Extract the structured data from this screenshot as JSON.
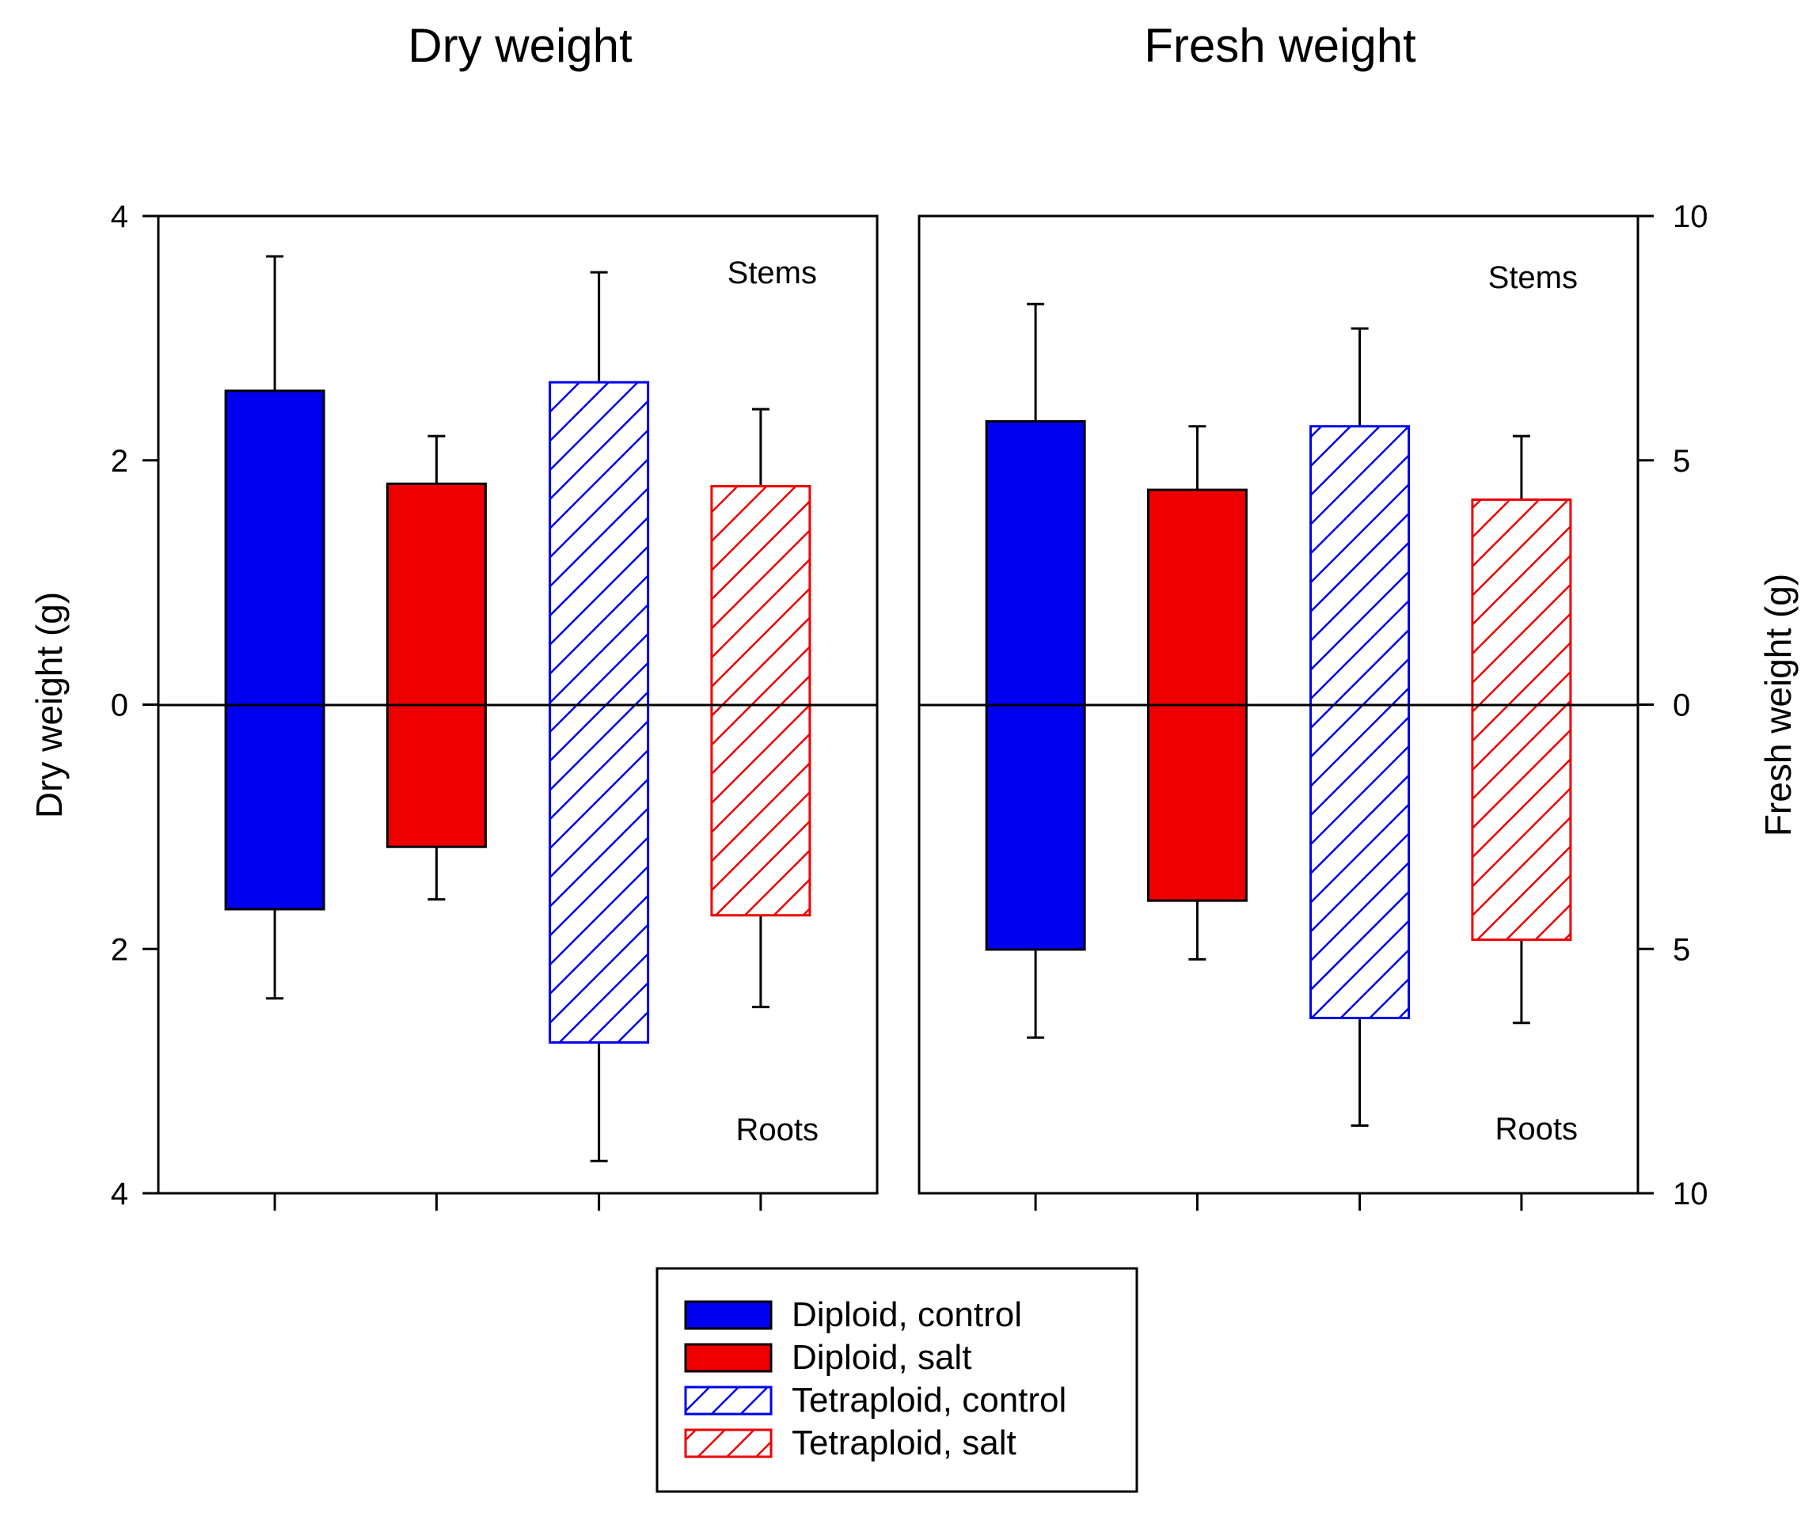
{
  "chart_data": [
    {
      "type": "bar",
      "title": "Dry weight",
      "ylabel": "Dry weight (g)",
      "xlabel": "",
      "ylim": [
        -4,
        4
      ],
      "yticks": [
        4,
        2,
        0,
        2,
        4
      ],
      "annotations": {
        "top": "Stems",
        "bottom": "Roots"
      },
      "groups": [
        "Diploid, control",
        "Diploid, salt",
        "Tetraploid, control",
        "Tetraploid, salt"
      ],
      "stems": {
        "values": [
          2.57,
          1.81,
          2.64,
          1.79
        ],
        "errors": [
          1.1,
          0.39,
          0.9,
          0.63
        ]
      },
      "roots": {
        "values": [
          1.67,
          1.16,
          2.76,
          1.72
        ],
        "errors": [
          0.73,
          0.43,
          0.97,
          0.75
        ]
      },
      "grid": false
    },
    {
      "type": "bar",
      "title": "Fresh weight",
      "ylabel": "Fresh weight (g)",
      "xlabel": "",
      "ylim": [
        -10,
        10
      ],
      "yticks": [
        10,
        5,
        0,
        5,
        10
      ],
      "annotations": {
        "top": "Stems",
        "bottom": "Roots"
      },
      "groups": [
        "Diploid, control",
        "Diploid, salt",
        "Tetraploid, control",
        "Tetraploid, salt"
      ],
      "stems": {
        "values": [
          5.8,
          4.4,
          5.7,
          4.2
        ],
        "errors": [
          2.4,
          1.3,
          2.0,
          1.3
        ]
      },
      "roots": {
        "values": [
          5.0,
          4.0,
          6.4,
          4.8
        ],
        "errors": [
          1.8,
          1.2,
          2.2,
          1.7
        ]
      },
      "grid": false
    }
  ],
  "legend": {
    "position": "bottom-center",
    "items": [
      {
        "label": "Diploid, control",
        "color": "#0000ee",
        "pattern": "solid"
      },
      {
        "label": "Diploid, salt",
        "color": "#ee0000",
        "pattern": "solid"
      },
      {
        "label": "Tetraploid, control",
        "color": "#0000ee",
        "pattern": "hatch"
      },
      {
        "label": "Tetraploid, salt",
        "color": "#ee0000",
        "pattern": "hatch"
      }
    ]
  }
}
